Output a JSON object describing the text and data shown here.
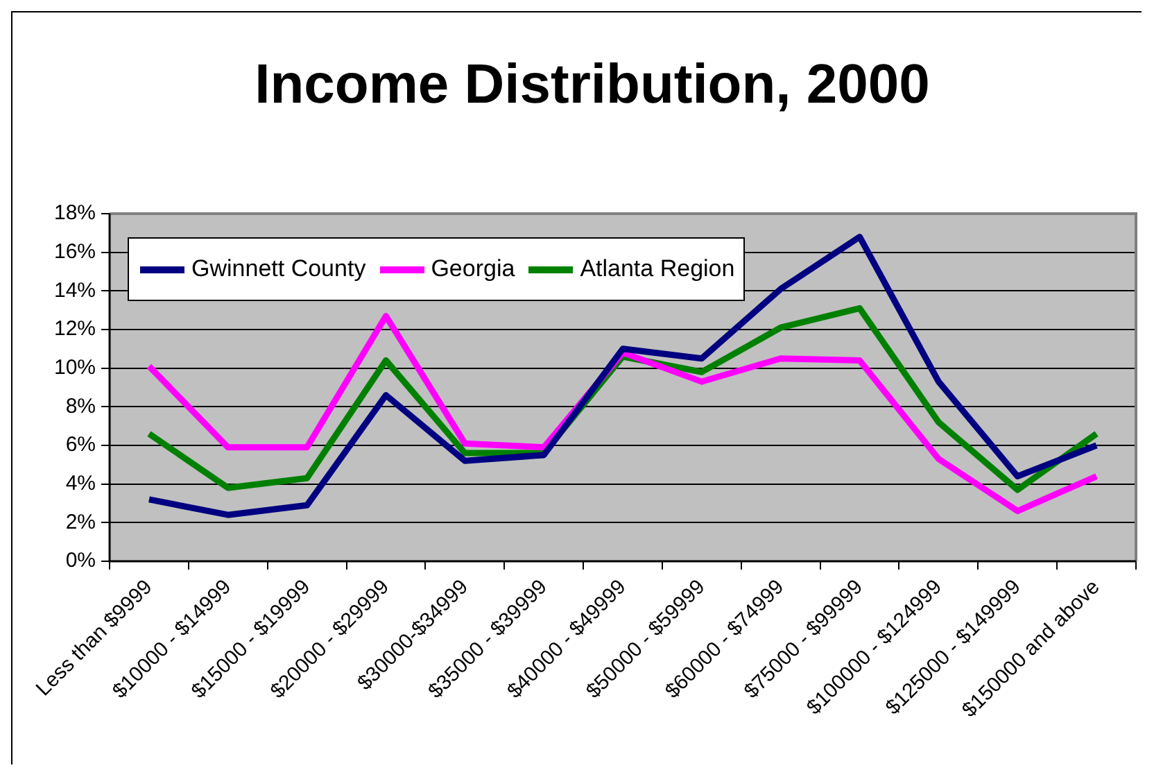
{
  "chart_data": {
    "type": "line",
    "title": "Income Distribution, 2000",
    "categories": [
      "Less than $9999",
      "$10000 - $14999",
      "$15000 - $19999",
      "$20000 - $29999",
      "$30000-$34999",
      "$35000 - $39999",
      "$40000 - $49999",
      "$50000 - $59999",
      "$60000 - $74999",
      "$75000 - $99999",
      "$100000 - $124999",
      "$125000 - $149999",
      "$150000 and above"
    ],
    "series": [
      {
        "name": "Gwinnett County",
        "color": "#000080",
        "values": [
          3.2,
          2.4,
          2.9,
          8.6,
          5.2,
          5.5,
          11.0,
          10.5,
          14.1,
          16.8,
          9.3,
          4.4,
          6.0
        ]
      },
      {
        "name": "Georgia",
        "color": "#ff00ff",
        "values": [
          10.1,
          5.9,
          5.9,
          12.7,
          6.1,
          5.9,
          10.8,
          9.3,
          10.5,
          10.4,
          5.3,
          2.6,
          4.4
        ]
      },
      {
        "name": "Atlanta Region",
        "color": "#008000",
        "values": [
          6.6,
          3.8,
          4.3,
          10.4,
          5.6,
          5.6,
          10.6,
          9.8,
          12.1,
          13.1,
          7.2,
          3.7,
          6.6
        ]
      }
    ],
    "ylim": [
      0,
      18
    ],
    "yticks": [
      {
        "value": 0,
        "label": "0%"
      },
      {
        "value": 2,
        "label": "2%"
      },
      {
        "value": 4,
        "label": "4%"
      },
      {
        "value": 6,
        "label": "6%"
      },
      {
        "value": 8,
        "label": "8%"
      },
      {
        "value": 10,
        "label": "10%"
      },
      {
        "value": 12,
        "label": "12%"
      },
      {
        "value": 14,
        "label": "14%"
      },
      {
        "value": 16,
        "label": "16%"
      },
      {
        "value": 18,
        "label": "18%"
      }
    ],
    "grid": "y",
    "legend": "top left"
  }
}
